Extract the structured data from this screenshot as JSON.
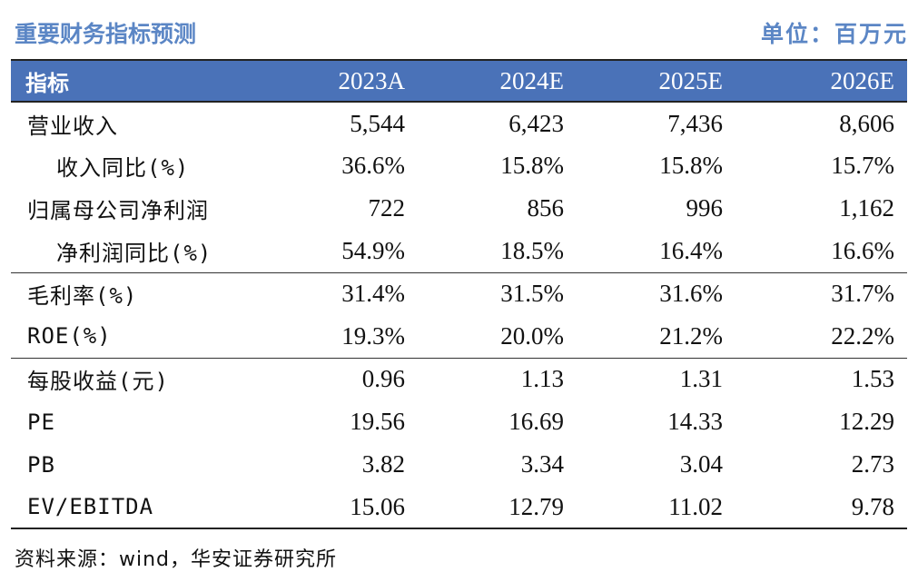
{
  "header": {
    "title": "重要财务指标预测",
    "unit": "单位：百万元"
  },
  "table": {
    "columns": [
      "指标",
      "2023A",
      "2024E",
      "2025E",
      "2026E"
    ],
    "rows": [
      {
        "label": "营业收入",
        "values": [
          "5,544",
          "6,423",
          "7,436",
          "8,606"
        ]
      },
      {
        "label": "收入同比(%)",
        "values": [
          "36.6%",
          "15.8%",
          "15.8%",
          "15.7%"
        ]
      },
      {
        "label": "归属母公司净利润",
        "values": [
          "722",
          "856",
          "996",
          "1,162"
        ]
      },
      {
        "label": "净利润同比(%)",
        "values": [
          "54.9%",
          "18.5%",
          "16.4%",
          "16.6%"
        ]
      },
      {
        "label": "毛利率(%)",
        "values": [
          "31.4%",
          "31.5%",
          "31.6%",
          "31.7%"
        ]
      },
      {
        "label": "ROE(%)",
        "values": [
          "19.3%",
          "20.0%",
          "21.2%",
          "22.2%"
        ]
      },
      {
        "label": "每股收益(元)",
        "values": [
          "0.96",
          "1.13",
          "1.31",
          "1.53"
        ]
      },
      {
        "label": "PE",
        "values": [
          "19.56",
          "16.69",
          "14.33",
          "12.29"
        ]
      },
      {
        "label": "PB",
        "values": [
          "3.82",
          "3.34",
          "3.04",
          "2.73"
        ]
      },
      {
        "label": "EV/EBITDA",
        "values": [
          "15.06",
          "12.79",
          "11.02",
          "9.78"
        ]
      }
    ]
  },
  "footer": {
    "source": "资料来源：wind，华安证券研究所"
  },
  "colors": {
    "header_bg": "#4a72b8",
    "title_text": "#5b86c5"
  }
}
